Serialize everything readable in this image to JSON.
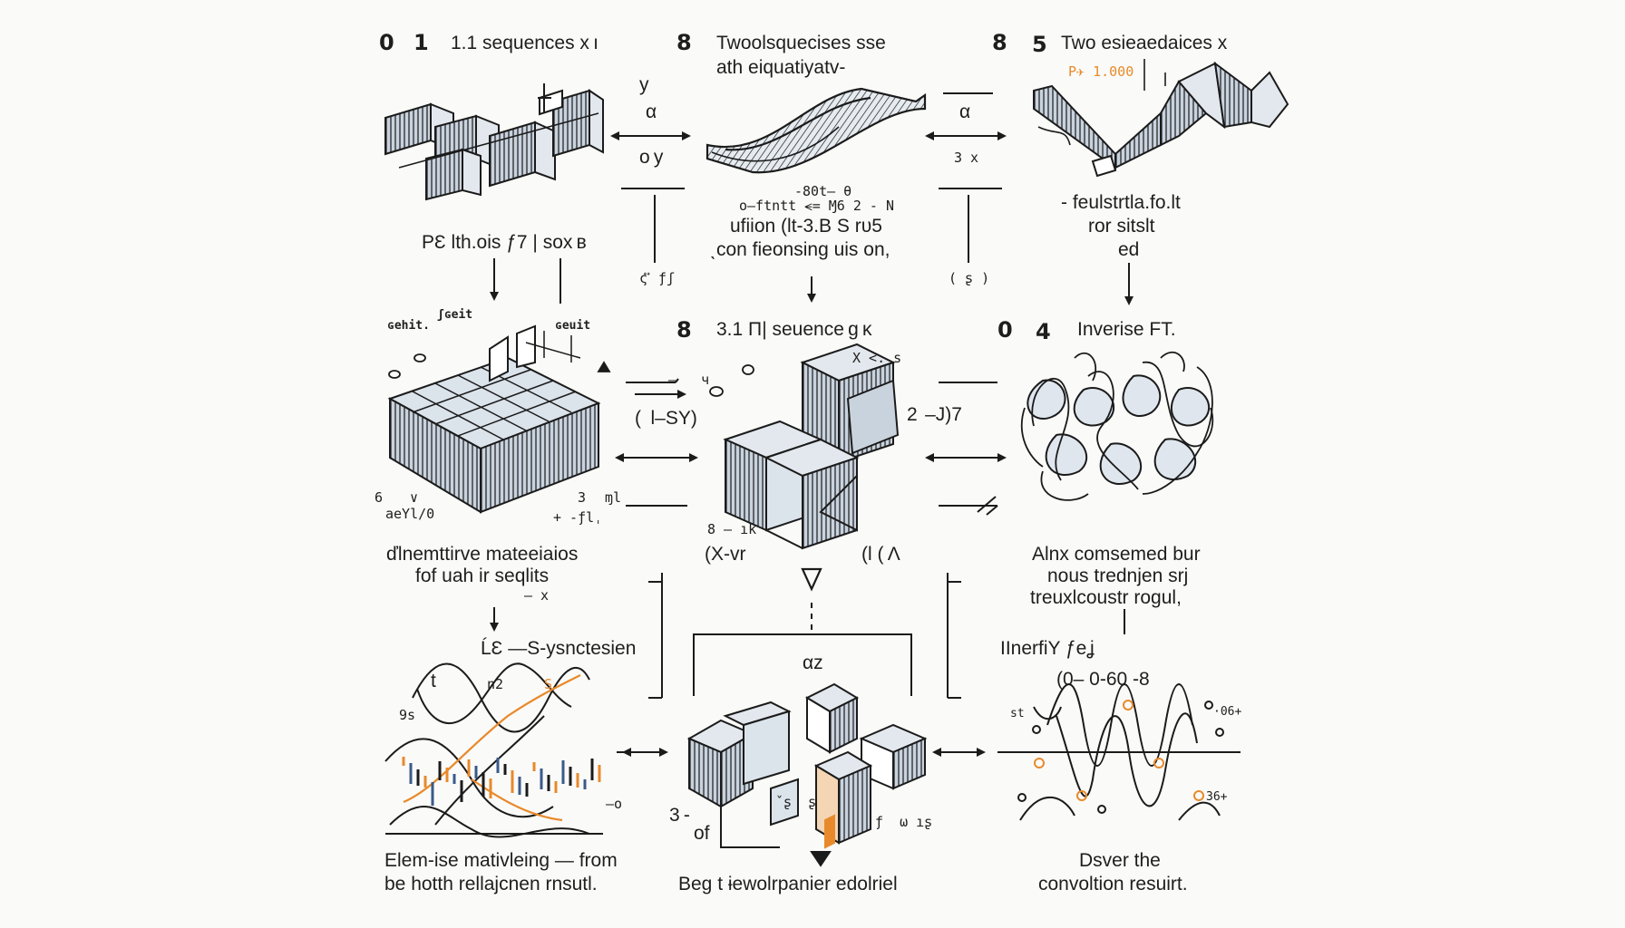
{
  "colors": {
    "ink": "#1b1b1b",
    "accent": "#e88a2b",
    "fill": "#c9d3de",
    "background": "#fafaf8"
  },
  "top": {
    "panel1": {
      "num_a": "0",
      "num_b": "1",
      "title": "1.1 sequences x ı"
    },
    "panel2": {
      "num": "8",
      "title_line1": "Twoolsquecises sse",
      "title_line2": "ath eiquatiyatv-"
    },
    "panel3": {
      "num_a": "8",
      "num_b": "5",
      "title": "Two esieaedaices x",
      "orange_label": "P✈ 1.000"
    },
    "arrow1": {
      "top": "у",
      "mid": "α",
      "bottom": "o y"
    },
    "arrow2": {
      "mid": "α",
      "bottom": "3 x"
    },
    "mid_text": {
      "line1": "-80t– θ",
      "line2": "o–ftntt ⪪= Ɱ6 2 - Ν",
      "line3": "ufiion (lt-3.Β S rυ5",
      "line4": "ˎcon fieonsing uis on,"
    },
    "left_caption": "РƐ lth.ois ƒ7 | sox в",
    "left_mark": "ς ⃡ ƒʃ",
    "right_mark": "( ʂ )",
    "right_caption": {
      "line1": "- feulstrtla.fo.lt",
      "line2": "ror sitslt",
      "line3": "ed"
    }
  },
  "middle": {
    "left": {
      "tag1": "ɢehit.",
      "tag2": "ʃɢeit",
      "tag3": "ɢeuit",
      "sub_a": "6",
      "sub_b": "∨",
      "sub_c": "aeYl/0",
      "sub_d": "3",
      "sub_e": "ɱl",
      "sub_f": "+ ‐ƒlˌ"
    },
    "center": {
      "num": "8",
      "title": "3.1 Π| seuence g ĸ",
      "xs": "X <. s",
      "note1": "8 – ık",
      "note2": "(X-vr",
      "note3": "(l ( Ʌ",
      "left_side": "( l–SY)",
      "left_small": "–   ч",
      "right_side": "2  –J)7"
    },
    "right": {
      "num_a": "0",
      "num_b": "4",
      "title": "Inverise FT."
    },
    "left_caption": {
      "line1": "ďlnemttirve mateeiaios",
      "line2": "fof uah ir seqlits",
      "line3": "— x"
    },
    "right_caption": {
      "line1": "Alnx comsemed bur",
      "line2": "nous trednjen srj",
      "line3": "treuxlcoustr rogul,"
    }
  },
  "bottom": {
    "left": {
      "top_label": "ĹƐ —S-ysnctesien",
      "wave_t": "t",
      "wave_n": "n2",
      "wave_s": "S",
      "axis_l": "9s",
      "axis_r": "–o",
      "caption1": "Elem-ise mativleing — from",
      "caption2": "be hotth rellajcnen rnsutl."
    },
    "center": {
      "alpha": "αz",
      "side_l": "3 -",
      "side_of": "of",
      "side_r": "ƒ  ω ıʂ",
      "mid": "ˇʂ  ʂ",
      "caption": "Beg t ɨewolrpanier edolriel"
    },
    "right": {
      "top_label": "IInerfiY ƒeʝ",
      "formula": "(0– 0-60 -8",
      "l_a": "st",
      "r_a": "·06+",
      "r_b": "36+",
      "caption1": "Dsver the",
      "caption2": "convoltion resuirt."
    }
  }
}
